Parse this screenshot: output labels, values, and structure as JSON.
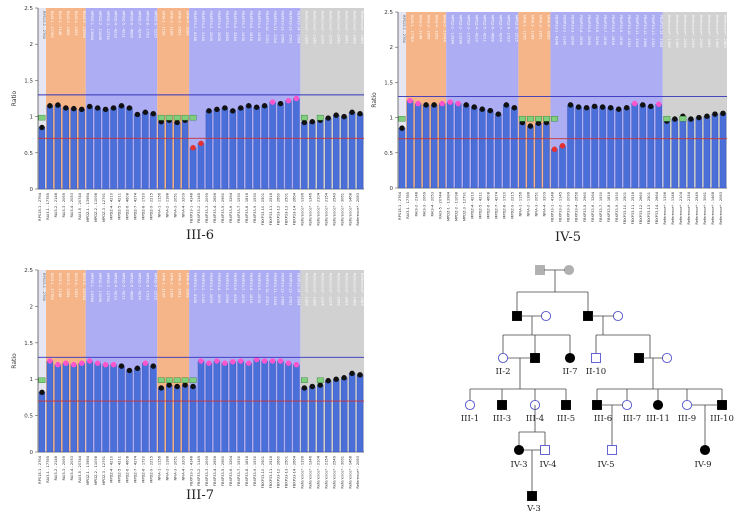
{
  "captions": {
    "panel_a": "III-6",
    "panel_b": "IV-5",
    "panel_c": "III-7"
  },
  "axis": {
    "ylabel": "Ratio",
    "yticks": [
      "0",
      "0.5",
      "1",
      "1.5",
      "2",
      "2.5"
    ]
  },
  "probe_labels": [
    "RPS15-1 - 2764",
    "RAI3-1 - 17785",
    "RAI3-2 - 2148",
    "RAI3-3 - 2069",
    "RAI3-4 - 2053",
    "RAI3-5 - 20744",
    "MPDZ-1 - 13984",
    "MPDZ-2 - 11098",
    "MPDZ-3 - 12791",
    "MPDZ-4 - 4210",
    "MPDZ-5 - 4211",
    "MPDZ-6 - 4608",
    "MPDZ-7 - 4274",
    "MPDZ-8 - 1720",
    "MPDZ-9 - 2215",
    "NFIA-1 - 1156",
    "NFIA-2 - 1188",
    "NFIA-3 - 2051",
    "NFIA-4 - 3209",
    "FBXP33-1 - 4148",
    "FBXP33-2 - 1145",
    "FBXP33-3 - 2099",
    "FBXP33-4 - 2656",
    "FBXP33-5 - 2960",
    "FBXP33-6 - 3264",
    "FBXP33-7 - 1930",
    "FBXP33-8 - 1816",
    "FBXP33-9 - 1930",
    "FBXP33-10 - 2501",
    "FBXP33-11 - 2516",
    "FBXP33-12 - 2660",
    "FBXP33-13 - 2501",
    "FBXP33-14 - 2664",
    "Reference* - 1396",
    "Reference* - 1346",
    "Reference* - 2104",
    "Reference* - 2154",
    "Reference* - 2549",
    "Reference* - 3061",
    "Reference* - 1468",
    "Reference* - 2083"
  ],
  "chart_data": [
    {
      "type": "bar",
      "caption": "III-6",
      "ylabel": "Ratio",
      "ylim": [
        0,
        2.5
      ],
      "thresholds": {
        "upper": 1.3,
        "lower": 0.7
      },
      "values": [
        0.85,
        1.15,
        1.16,
        1.12,
        1.11,
        1.1,
        1.14,
        1.12,
        1.1,
        1.12,
        1.15,
        1.12,
        1.03,
        1.06,
        1.04,
        0.93,
        0.95,
        0.92,
        0.95,
        0.57,
        0.63,
        1.08,
        1.1,
        1.12,
        1.08,
        1.12,
        1.15,
        1.13,
        1.15,
        1.2,
        1.18,
        1.22,
        1.25,
        0.92,
        0.93,
        0.95,
        0.98,
        1.02,
        1.0,
        1.06,
        1.04
      ],
      "bands": [
        {
          "from": 1,
          "to": 5,
          "color": "#f4b183"
        },
        {
          "from": 6,
          "to": 14,
          "color": "#a9a9f2"
        },
        {
          "from": 15,
          "to": 18,
          "color": "#f4b183"
        },
        {
          "from": 19,
          "to": 32,
          "color": "#a9a9f2"
        },
        {
          "from": 33,
          "to": 40,
          "color": "#cfcfcf"
        }
      ]
    },
    {
      "type": "bar",
      "caption": "IV-5",
      "ylabel": "Ratio",
      "ylim": [
        0,
        2.5
      ],
      "thresholds": {
        "upper": 1.3,
        "lower": 0.7
      },
      "values": [
        0.85,
        1.24,
        1.2,
        1.18,
        1.18,
        1.2,
        1.22,
        1.2,
        1.18,
        1.15,
        1.12,
        1.1,
        1.05,
        1.18,
        1.14,
        0.93,
        0.88,
        0.92,
        0.93,
        0.55,
        0.6,
        1.18,
        1.15,
        1.14,
        1.16,
        1.15,
        1.14,
        1.12,
        1.14,
        1.2,
        1.18,
        1.16,
        1.19,
        0.95,
        0.98,
        1.02,
        0.98,
        1.0,
        1.02,
        1.05,
        1.06
      ],
      "bands": [
        {
          "from": 1,
          "to": 5,
          "color": "#f4b183"
        },
        {
          "from": 6,
          "to": 14,
          "color": "#a9a9f2"
        },
        {
          "from": 15,
          "to": 18,
          "color": "#f4b183"
        },
        {
          "from": 19,
          "to": 32,
          "color": "#a9a9f2"
        },
        {
          "from": 33,
          "to": 40,
          "color": "#cfcfcf"
        }
      ]
    },
    {
      "type": "bar",
      "caption": "III-7",
      "ylabel": "Ratio",
      "ylim": [
        0,
        2.5
      ],
      "thresholds": {
        "upper": 1.3,
        "lower": 0.7
      },
      "values": [
        0.82,
        1.25,
        1.2,
        1.22,
        1.2,
        1.22,
        1.25,
        1.22,
        1.2,
        1.2,
        1.18,
        1.12,
        1.15,
        1.22,
        1.18,
        0.88,
        0.92,
        0.9,
        0.92,
        0.9,
        1.25,
        1.22,
        1.25,
        1.22,
        1.24,
        1.25,
        1.22,
        1.27,
        1.25,
        1.25,
        1.25,
        1.22,
        1.2,
        0.88,
        0.9,
        0.92,
        0.98,
        1.0,
        1.02,
        1.08,
        1.06
      ],
      "bands": [
        {
          "from": 1,
          "to": 5,
          "color": "#f4b183"
        },
        {
          "from": 6,
          "to": 14,
          "color": "#a9a9f2"
        },
        {
          "from": 15,
          "to": 18,
          "color": "#f4b183"
        },
        {
          "from": 19,
          "to": 32,
          "color": "#a9a9f2"
        },
        {
          "from": 33,
          "to": 40,
          "color": "#cfcfcf"
        }
      ]
    }
  ],
  "pedigree": {
    "labels": [
      "II-2",
      "II-7",
      "II-10",
      "III-1",
      "III-3",
      "III-4",
      "III-5",
      "III-6",
      "III-7",
      "III-11",
      "III-9",
      "III-10",
      "IV-3",
      "IV-4",
      "IV-5",
      "IV-9",
      "V-3"
    ]
  },
  "colors": {
    "bar": "#4a6fd8",
    "bar_dark": "#2a44a8",
    "upper_line": "#3333bb",
    "lower_line": "#cc3333",
    "affected": "#000000",
    "unaffected": "#5555cc",
    "grey": "#b0b0b0"
  }
}
